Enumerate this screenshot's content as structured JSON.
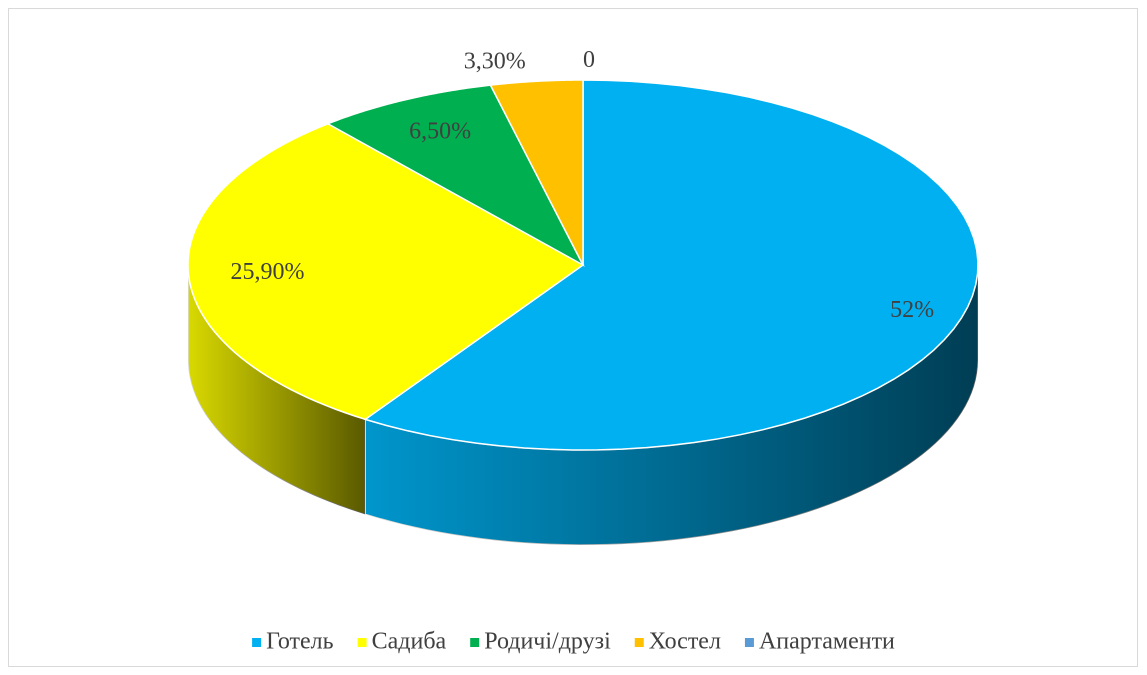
{
  "chart_data": {
    "type": "pie3d",
    "categories": [
      "Готель",
      "Садиба",
      "Родичі/друзі",
      "Хостел",
      "Апартаменти"
    ],
    "values": [
      52,
      25.9,
      6.5,
      3.3,
      0
    ],
    "value_labels": [
      "52%",
      "25,90%",
      "6,50%",
      "3,30%",
      "0"
    ],
    "colors": [
      "#00b0f0",
      "#ffff00",
      "#00b050",
      "#ffc000",
      "#5b9bd5"
    ],
    "legend": "bottom"
  }
}
